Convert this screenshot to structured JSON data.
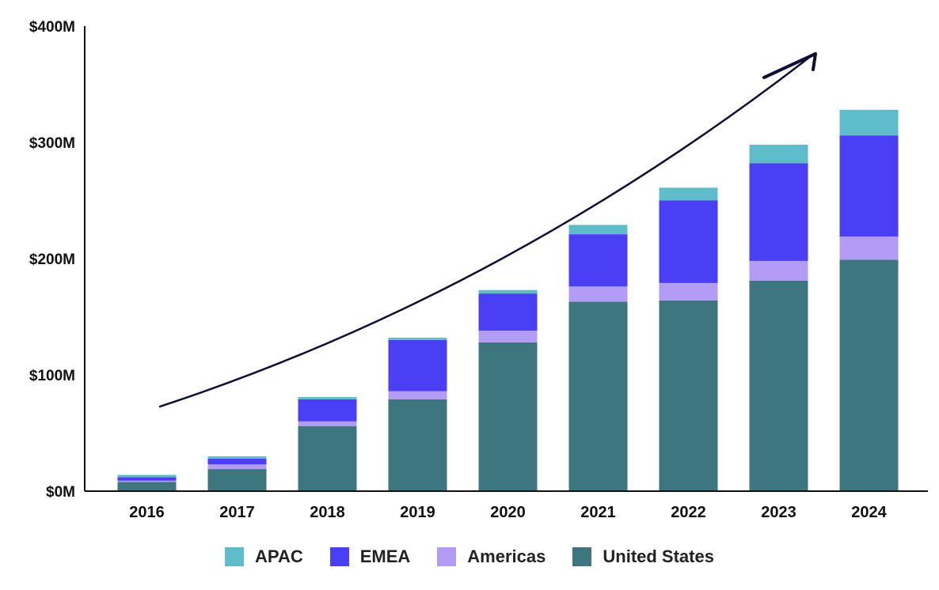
{
  "chart_data": {
    "type": "bar",
    "stacked": true,
    "categories": [
      "2016",
      "2017",
      "2018",
      "2019",
      "2020",
      "2021",
      "2022",
      "2023",
      "2024"
    ],
    "series": [
      {
        "name": "United States",
        "color": "#3E7680",
        "values": [
          8,
          19,
          56,
          79,
          128,
          163,
          164,
          181,
          199
        ]
      },
      {
        "name": "Americas",
        "color": "#B39CF6",
        "values": [
          1,
          4,
          4,
          7,
          10,
          13,
          15,
          17,
          20
        ]
      },
      {
        "name": "EMEA",
        "color": "#4B3FF5",
        "values": [
          3,
          5,
          19,
          44,
          32,
          45,
          71,
          84,
          87
        ]
      },
      {
        "name": "APAC",
        "color": "#5FBDCB",
        "values": [
          2,
          2,
          2,
          2,
          3,
          8,
          11,
          16,
          22
        ]
      }
    ],
    "legend_order": [
      "APAC",
      "EMEA",
      "Americas",
      "United States"
    ],
    "yticks": [
      0,
      100,
      200,
      300,
      400
    ],
    "ytick_labels": [
      "$0M",
      "$100M",
      "$200M",
      "$300M",
      "$400M"
    ],
    "ylim": [
      0,
      400
    ],
    "grid": false,
    "legend_position": "bottom",
    "annotations": [
      {
        "type": "trend-arrow",
        "description": "upward curved arrow rising from left to right",
        "color": "#0D1033"
      }
    ],
    "title": "",
    "xlabel": "",
    "ylabel": ""
  }
}
